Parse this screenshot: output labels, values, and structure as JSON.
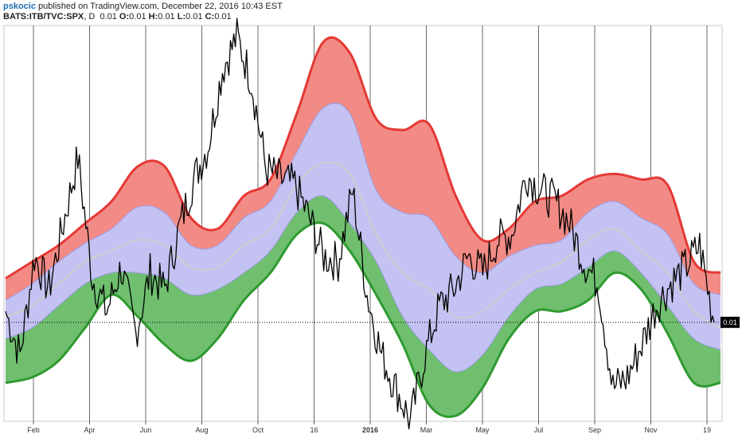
{
  "header": {
    "username": "pskocic",
    "published": " published on TradingView.com, December 22, 2016 10:43 EST",
    "symbol": "BATS:ITB/TVC:SPX",
    "interval": ", D",
    "last": "0.01",
    "o_label": "O:",
    "o_val": "0.01",
    "h_label": "H:",
    "h_val": "0.01",
    "l_label": "L:",
    "l_val": "0.01",
    "c_label": "C:",
    "c_val": "0.01"
  },
  "colors": {
    "upper_line": "#e53935",
    "upper_fill": "#f28b86",
    "mid_fill": "#c3c2f2",
    "mid_line": "#9e9ae0",
    "lower_fill": "#6fbf6f",
    "lower_line": "#2f9a2f",
    "basis": "#d9d2b8",
    "price": "#000000",
    "grid": "#6b6b6b",
    "tag_bg": "#000000"
  },
  "chart_data": {
    "type": "line",
    "title": "",
    "x_tick_labels": [
      {
        "label": "Feb"
      },
      {
        "label": "Apr"
      },
      {
        "label": "Jun"
      },
      {
        "label": "Aug"
      },
      {
        "label": "Oct"
      },
      {
        "label": "16"
      },
      {
        "label": "2016",
        "bold": true
      },
      {
        "label": "Mar"
      },
      {
        "label": "May"
      },
      {
        "label": "Jul"
      },
      {
        "label": "Sep"
      },
      {
        "label": "Nov"
      },
      {
        "label": "19"
      }
    ],
    "last_value_label": "0.01",
    "reference_line": "dotted horizontal at last value",
    "bands": {
      "outer_upper": [
        0.4,
        0.55,
        0.7,
        0.9,
        1.1,
        1.42,
        1.42,
        0.95,
        0.85,
        1.15,
        1.3,
        1.9,
        2.55,
        2.45,
        1.85,
        1.75,
        1.8,
        1.15,
        0.75,
        0.85,
        1.1,
        1.15,
        1.3,
        1.35,
        1.3,
        1.25,
        0.55,
        0.45
      ],
      "inner_upper": [
        0.2,
        0.35,
        0.55,
        0.72,
        0.85,
        1.05,
        1.0,
        0.7,
        0.7,
        0.95,
        1.1,
        1.55,
        1.95,
        1.9,
        1.2,
        1.0,
        0.95,
        0.6,
        0.45,
        0.6,
        0.7,
        0.75,
        1.0,
        1.1,
        0.95,
        0.8,
        0.35,
        0.25
      ],
      "basis": [
        0.05,
        0.15,
        0.35,
        0.55,
        0.65,
        0.75,
        0.7,
        0.5,
        0.5,
        0.7,
        0.85,
        1.25,
        1.45,
        1.35,
        0.8,
        0.45,
        0.3,
        0.05,
        0.1,
        0.3,
        0.45,
        0.55,
        0.75,
        0.85,
        0.65,
        0.45,
        0.1,
        -0.05
      ],
      "inner_lower": [
        -0.15,
        -0.05,
        0.15,
        0.35,
        0.45,
        0.45,
        0.4,
        0.25,
        0.3,
        0.45,
        0.65,
        1.0,
        1.15,
        0.9,
        0.55,
        0.05,
        -0.25,
        -0.45,
        -0.3,
        0.05,
        0.3,
        0.35,
        0.5,
        0.65,
        0.45,
        0.15,
        -0.15,
        -0.25
      ],
      "outer_lower": [
        -0.55,
        -0.5,
        -0.35,
        -0.05,
        0.25,
        0.05,
        -0.2,
        -0.35,
        -0.15,
        0.2,
        0.45,
        0.8,
        0.9,
        0.65,
        0.25,
        -0.2,
        -0.75,
        -0.85,
        -0.6,
        -0.15,
        0.1,
        0.1,
        0.2,
        0.45,
        0.3,
        -0.1,
        -0.55,
        -0.55
      ]
    },
    "price": [
      0.1,
      -0.3,
      0.6,
      0.3,
      0.9,
      1.5,
      0.4,
      0.1,
      0.5,
      -0.1,
      0.45,
      0.3,
      0.85,
      1.3,
      1.6,
      2.3,
      2.6,
      2.2,
      1.4,
      1.3,
      1.25,
      0.95,
      0.6,
      0.55,
      1.2,
      0.25,
      -0.3,
      -0.6,
      -0.9,
      -0.3,
      0.15,
      0.3,
      0.6,
      0.45,
      0.75,
      0.8,
      1.35,
      1.2,
      1.1,
      0.9,
      0.55,
      0.35,
      -0.6,
      -0.5,
      -0.2,
      0.15,
      0.35,
      0.5,
      0.7,
      0.0
    ]
  }
}
